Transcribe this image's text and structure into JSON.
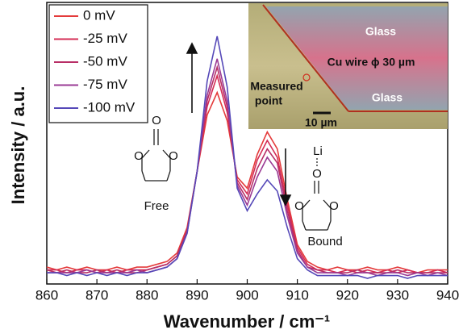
{
  "chart_data": {
    "type": "line",
    "x_label": "Wavenumber / cm⁻¹",
    "y_label": "Intensity / a.u.",
    "x": [
      860,
      862,
      864,
      866,
      868,
      870,
      872,
      874,
      876,
      878,
      880,
      882,
      884,
      886,
      888,
      890,
      892,
      894,
      896,
      898,
      900,
      902,
      904,
      906,
      908,
      910,
      912,
      914,
      916,
      918,
      920,
      922,
      924,
      926,
      928,
      930,
      932,
      934,
      936,
      938,
      940
    ],
    "series": [
      {
        "name": "0 mV",
        "color": "#e43b3b",
        "values": [
          6,
          5,
          6,
          5,
          6,
          5,
          5,
          6,
          5,
          6,
          6,
          7,
          8,
          11,
          20,
          40,
          60,
          68,
          58,
          38,
          34,
          46,
          54,
          48,
          30,
          14,
          8,
          6,
          5,
          6,
          5,
          5,
          6,
          5,
          5,
          6,
          5,
          4,
          5,
          5,
          5
        ]
      },
      {
        "name": "-25 mV",
        "color": "#d42c55",
        "values": [
          5,
          5,
          4,
          5,
          5,
          4,
          5,
          4,
          5,
          5,
          5,
          6,
          7,
          10,
          19,
          40,
          63,
          74,
          61,
          37,
          32,
          44,
          51,
          45,
          28,
          13,
          7,
          5,
          5,
          4,
          5,
          4,
          5,
          4,
          5,
          4,
          5,
          4,
          4,
          5,
          4
        ]
      },
      {
        "name": "-50 mV",
        "color": "#b82e66",
        "values": [
          5,
          4,
          5,
          4,
          4,
          5,
          4,
          5,
          4,
          4,
          5,
          6,
          7,
          10,
          19,
          40,
          65,
          77,
          63,
          36,
          30,
          41,
          48,
          43,
          26,
          12,
          6,
          5,
          4,
          4,
          4,
          5,
          4,
          4,
          4,
          5,
          4,
          4,
          4,
          4,
          4
        ]
      },
      {
        "name": "-75 mV",
        "color": "#9a3a94",
        "values": [
          4,
          4,
          4,
          4,
          5,
          4,
          4,
          4,
          4,
          5,
          4,
          5,
          6,
          9,
          18,
          40,
          67,
          80,
          65,
          35,
          28,
          38,
          45,
          40,
          24,
          11,
          6,
          4,
          4,
          4,
          3,
          4,
          4,
          3,
          4,
          4,
          3,
          4,
          3,
          4,
          3
        ]
      },
      {
        "name": "-100 mV",
        "color": "#5548b8",
        "values": [
          4,
          4,
          3,
          4,
          3,
          4,
          3,
          4,
          3,
          4,
          4,
          5,
          6,
          9,
          18,
          40,
          72,
          88,
          70,
          34,
          26,
          32,
          37,
          33,
          20,
          9,
          5,
          3,
          3,
          3,
          3,
          3,
          2,
          3,
          3,
          3,
          2,
          3,
          3,
          3,
          3
        ]
      }
    ],
    "xlim": [
      860,
      940
    ],
    "xticks": [
      860,
      870,
      880,
      890,
      900,
      910,
      920,
      930,
      940
    ],
    "ylim": [
      0,
      100
    ],
    "legend": "upper left",
    "annotations": {
      "free": [
        "O",
        "O",
        "O",
        "Free"
      ],
      "bound": [
        "Li",
        "O",
        "O",
        "O",
        "Bound"
      ],
      "inset": {
        "glass_top": "Glass",
        "wire": "Cu wire ϕ 30 µm",
        "glass_bottom": "Glass",
        "measured": [
          "Measured",
          "point"
        ],
        "scale": "10 µm"
      }
    }
  }
}
